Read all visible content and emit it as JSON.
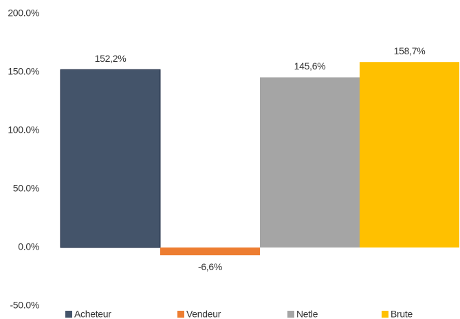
{
  "chart_data": {
    "type": "bar",
    "categories": [
      null
    ],
    "series": [
      {
        "name": "Acheteur",
        "color": "#44546a",
        "values": [
          152.2
        ],
        "value_labels": [
          "152,2%"
        ]
      },
      {
        "name": "Vendeur",
        "color": "#ed7d31",
        "values": [
          -6.6
        ],
        "value_labels": [
          "-6,6%"
        ]
      },
      {
        "name": "Netle",
        "color": "#a5a5a5",
        "values": [
          145.6
        ],
        "value_labels": [
          "145,6%"
        ]
      },
      {
        "name": "Brute",
        "color": "#ffc000",
        "values": [
          158.7
        ],
        "value_labels": [
          "158,7%"
        ]
      }
    ],
    "ylim": [
      -50,
      200
    ],
    "yticks": [
      {
        "value": -50,
        "label": "-50.0%"
      },
      {
        "value": 0,
        "label": "0.0%"
      },
      {
        "value": 50,
        "label": "50.0%"
      },
      {
        "value": 100,
        "label": "100.0%"
      },
      {
        "value": 150,
        "label": "150.0%"
      },
      {
        "value": 200,
        "label": "200.0%"
      }
    ],
    "grid": false,
    "legend": "bottom"
  }
}
